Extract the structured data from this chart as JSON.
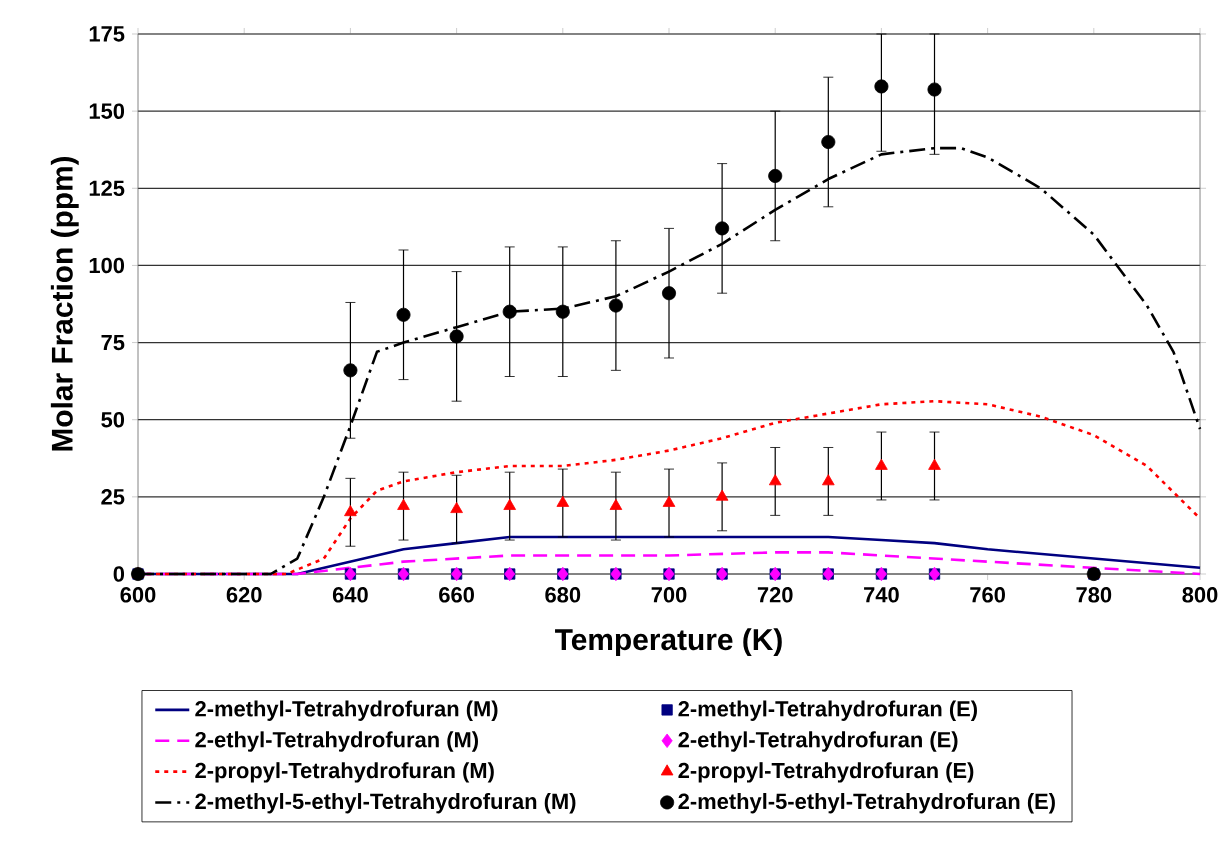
{
  "chart_data": {
    "type": "line",
    "xlabel": "Temperature (K)",
    "ylabel": "Molar Fraction (ppm)",
    "xlim": [
      600,
      800
    ],
    "xticks": [
      600,
      620,
      640,
      660,
      680,
      700,
      720,
      740,
      760,
      780,
      800
    ],
    "ylim": [
      0,
      175
    ],
    "yticks": [
      0,
      25,
      50,
      75,
      100,
      125,
      150,
      175
    ],
    "grid": "y",
    "legend": "bottom",
    "series": [
      {
        "name": "2-methyl-Tetrahydrofuran (M)",
        "color": "#000080",
        "marker": "none",
        "line_style": "solid",
        "x": [
          600,
          630,
          640,
          650,
          660,
          670,
          680,
          700,
          720,
          730,
          740,
          750,
          760,
          780,
          800
        ],
        "values": [
          0,
          0,
          4,
          8,
          10,
          12,
          12,
          12,
          12,
          12,
          11,
          10,
          8,
          5,
          2
        ]
      },
      {
        "name": "2-methyl-Tetrahydrofuran (E)",
        "type": "scatter",
        "color": "#000080",
        "marker": "square",
        "x": [
          600,
          640,
          650,
          660,
          670,
          680,
          690,
          700,
          710,
          720,
          730,
          740,
          750,
          780
        ],
        "values": [
          0,
          0,
          0,
          0,
          0,
          0,
          0,
          0,
          0,
          0,
          0,
          0,
          0,
          0
        ]
      },
      {
        "name": "2-ethyl-Tetrahydrofuran (M)",
        "color": "#ff00ff",
        "marker": "none",
        "line_style": "dashed",
        "x": [
          600,
          630,
          640,
          650,
          670,
          700,
          720,
          730,
          740,
          750,
          760,
          780,
          800
        ],
        "values": [
          0,
          0,
          2,
          4,
          6,
          6,
          7,
          7,
          6,
          5,
          4,
          2,
          0
        ]
      },
      {
        "name": "2-ethyl-Tetrahydrofuran (E)",
        "type": "scatter",
        "color": "#ff00ff",
        "marker": "diamond",
        "x": [
          640,
          650,
          660,
          670,
          680,
          690,
          700,
          710,
          720,
          730,
          740,
          750
        ],
        "values": [
          0,
          0,
          0,
          0,
          0,
          0,
          0,
          0,
          0,
          0,
          0,
          0
        ]
      },
      {
        "name": "2-propyl-Tetrahydrofuran (M)",
        "color": "#ff0000",
        "marker": "none",
        "line_style": "dotted",
        "x": [
          600,
          628,
          635,
          640,
          645,
          650,
          660,
          670,
          680,
          690,
          700,
          710,
          720,
          730,
          740,
          750,
          760,
          770,
          780,
          790,
          800
        ],
        "values": [
          0,
          0,
          5,
          18,
          27,
          30,
          33,
          35,
          35,
          37,
          40,
          44,
          49,
          52,
          55,
          56,
          55,
          51,
          45,
          35,
          18
        ]
      },
      {
        "name": "2-propyl-Tetrahydrofuran (E)",
        "type": "scatter",
        "color": "#ff0000",
        "marker": "triangle",
        "x": [
          600,
          640,
          650,
          660,
          670,
          680,
          690,
          700,
          710,
          720,
          730,
          740,
          750,
          780
        ],
        "values": [
          0,
          20,
          22,
          21,
          22,
          23,
          22,
          23,
          25,
          30,
          30,
          35,
          35,
          0
        ],
        "errors": [
          null,
          11,
          11,
          11,
          11,
          11,
          11,
          11,
          11,
          11,
          11,
          11,
          11,
          null
        ]
      },
      {
        "name": "2-methyl-5-ethyl-Tetrahydrofuran (M)",
        "color": "#000000",
        "marker": "none",
        "line_style": "dashdot",
        "x": [
          600,
          625,
          630,
          635,
          640,
          645,
          650,
          660,
          670,
          680,
          690,
          700,
          710,
          720,
          730,
          740,
          750,
          755,
          760,
          770,
          780,
          790,
          795,
          800
        ],
        "values": [
          0,
          0,
          5,
          25,
          48,
          72,
          75,
          80,
          85,
          86,
          90,
          98,
          107,
          118,
          128,
          136,
          138,
          138,
          135,
          125,
          110,
          87,
          72,
          47
        ]
      },
      {
        "name": "2-methyl-5-ethyl-Tetrahydrofuran (E)",
        "type": "scatter",
        "color": "#000000",
        "marker": "circle",
        "x": [
          600,
          640,
          650,
          660,
          670,
          680,
          690,
          700,
          710,
          720,
          730,
          740,
          750,
          780
        ],
        "values": [
          0,
          66,
          84,
          77,
          85,
          85,
          87,
          91,
          112,
          129,
          140,
          158,
          157,
          0
        ],
        "errors": [
          null,
          22,
          21,
          21,
          21,
          21,
          21,
          21,
          21,
          21,
          21,
          [
            137,
            175
          ],
          [
            136,
            175
          ],
          null
        ]
      }
    ]
  }
}
